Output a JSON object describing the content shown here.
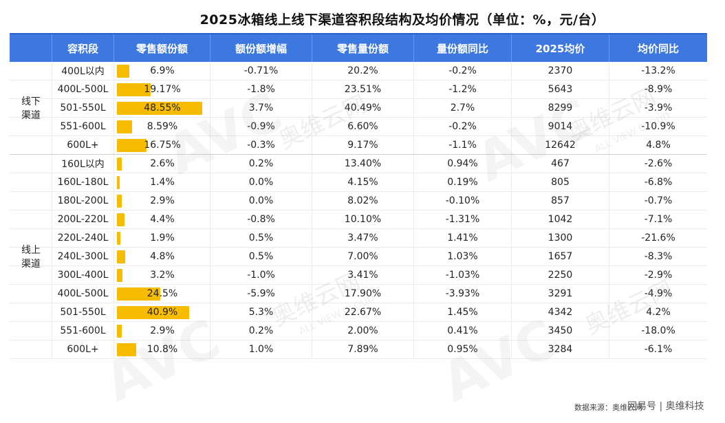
{
  "title": "2025冰箱线上线下渠道容积段结构及均价情况（单位：%，元/台）",
  "headers": [
    "容积段",
    "零售额份额",
    "额份额增幅",
    "零售量份额",
    "量份额同比",
    "2025均价",
    "均价同比"
  ],
  "groups": {
    "offline": "线下渠道",
    "online": "线上渠道"
  },
  "chart_data": {
    "type": "table",
    "title": "2025冰箱线上线下渠道容积段结构及均价情况（单位：%，元/台）",
    "columns": [
      "容积段",
      "零售额份额",
      "额份额增幅",
      "零售量份额",
      "量份额同比",
      "2025均价",
      "均价同比"
    ],
    "offline": [
      {
        "seg": "400L以内",
        "share": "6.9%",
        "share_v": 6.9,
        "share_chg": "-0.71%",
        "vol": "20.2%",
        "vol_yoy": "-0.2%",
        "price": "2370",
        "price_yoy": "-13.2%"
      },
      {
        "seg": "400L-500L",
        "share": "19.17%",
        "share_v": 19.17,
        "share_chg": "-1.8%",
        "vol": "23.51%",
        "vol_yoy": "-1.2%",
        "price": "5643",
        "price_yoy": "-8.9%"
      },
      {
        "seg": "501-550L",
        "share": "48.55%",
        "share_v": 48.55,
        "share_chg": "3.7%",
        "vol": "40.49%",
        "vol_yoy": "2.7%",
        "price": "8299",
        "price_yoy": "-3.9%"
      },
      {
        "seg": "551-600L",
        "share": "8.59%",
        "share_v": 8.59,
        "share_chg": "-0.9%",
        "vol": "6.60%",
        "vol_yoy": "-0.2%",
        "price": "9014",
        "price_yoy": "-10.9%"
      },
      {
        "seg": "600L+",
        "share": "16.75%",
        "share_v": 16.75,
        "share_chg": "-0.3%",
        "vol": "9.17%",
        "vol_yoy": "-1.1%",
        "price": "12642",
        "price_yoy": "4.8%"
      }
    ],
    "online": [
      {
        "seg": "160L以内",
        "share": "2.6%",
        "share_v": 2.6,
        "share_chg": "0.2%",
        "vol": "13.40%",
        "vol_yoy": "0.94%",
        "price": "467",
        "price_yoy": "-2.6%"
      },
      {
        "seg": "160L-180L",
        "share": "1.4%",
        "share_v": 1.4,
        "share_chg": "0.0%",
        "vol": "4.15%",
        "vol_yoy": "0.19%",
        "price": "805",
        "price_yoy": "-6.8%"
      },
      {
        "seg": "180L-200L",
        "share": "2.9%",
        "share_v": 2.9,
        "share_chg": "0.0%",
        "vol": "8.02%",
        "vol_yoy": "-0.10%",
        "price": "857",
        "price_yoy": "-0.7%"
      },
      {
        "seg": "200L-220L",
        "share": "4.4%",
        "share_v": 4.4,
        "share_chg": "-0.8%",
        "vol": "10.10%",
        "vol_yoy": "-1.31%",
        "price": "1042",
        "price_yoy": "-7.1%"
      },
      {
        "seg": "220L-240L",
        "share": "1.9%",
        "share_v": 1.9,
        "share_chg": "0.5%",
        "vol": "3.47%",
        "vol_yoy": "1.41%",
        "price": "1300",
        "price_yoy": "-21.6%"
      },
      {
        "seg": "240L-300L",
        "share": "4.8%",
        "share_v": 4.8,
        "share_chg": "0.5%",
        "vol": "7.00%",
        "vol_yoy": "1.03%",
        "price": "1657",
        "price_yoy": "-8.3%"
      },
      {
        "seg": "300L-400L",
        "share": "3.2%",
        "share_v": 3.2,
        "share_chg": "-1.0%",
        "vol": "3.41%",
        "vol_yoy": "-1.03%",
        "price": "2250",
        "price_yoy": "-2.9%"
      },
      {
        "seg": "400L-500L",
        "share": "24.5%",
        "share_v": 24.5,
        "share_chg": "-5.9%",
        "vol": "17.90%",
        "vol_yoy": "-3.93%",
        "price": "3291",
        "price_yoy": "-4.9%"
      },
      {
        "seg": "501-550L",
        "share": "40.9%",
        "share_v": 40.9,
        "share_chg": "5.3%",
        "vol": "22.67%",
        "vol_yoy": "1.45%",
        "price": "4342",
        "price_yoy": "4.2%"
      },
      {
        "seg": "551-600L",
        "share": "2.9%",
        "share_v": 2.9,
        "share_chg": "0.2%",
        "vol": "2.00%",
        "vol_yoy": "0.41%",
        "price": "3450",
        "price_yoy": "-18.0%"
      },
      {
        "seg": "600L+",
        "share": "10.8%",
        "share_v": 10.8,
        "share_chg": "1.0%",
        "vol": "7.89%",
        "vol_yoy": "0.95%",
        "price": "3284",
        "price_yoy": "-6.1%"
      }
    ]
  },
  "colors": {
    "header": "#3d78e0",
    "bar": "#f7bb00"
  },
  "footer": "数据来源：奥维云网",
  "watermark": {
    "brand": "AVC",
    "cn": "奥维云网",
    "en": "ALL VIEW CLOUD"
  },
  "corner_mark": "网易号 | 奥维科技"
}
